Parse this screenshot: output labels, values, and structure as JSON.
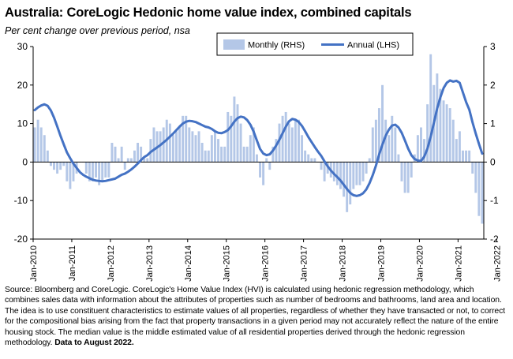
{
  "title": "Australia: CoreLogic Hedonic home value index, combined capitals",
  "subtitle": "Per cent change over previous period, nsa",
  "source_text": "Source: Bloomberg and CoreLogic. CoreLogic's Home Value Index (HVI) is calculated using hedonic regression methodology, which combines sales data with information about the attributes of properties such as number of bedrooms and bathrooms, land area and location.  The idea is to use constituent characteristics to estimate values of all properties, regardless of whether they have transacted or not, to correct for the compositional bias arising from the fact that property transactions in a given period may not accurately reflect the nature of the entire housing stock.  The median value is the middle estimated value of all residential properties derived through the hedonic regression methodology.",
  "source_bold": "Data to August 2022.",
  "chart_data": {
    "type": "bar+line",
    "x_start": "2010-01",
    "x_end": "2022-08",
    "frequency": "monthly",
    "x_ticks": [
      "Jan-2010",
      "Jan-2011",
      "Jan-2012",
      "Jan-2013",
      "Jan-2014",
      "Jan-2015",
      "Jan-2016",
      "Jan-2017",
      "Jan-2018",
      "Jan-2019",
      "Jan-2020",
      "Jan-2021",
      "Jan-2022"
    ],
    "left_axis": {
      "min": -20,
      "max": 30,
      "ticks": [
        -20,
        -10,
        0,
        10,
        20,
        30
      ]
    },
    "right_axis": {
      "min": -2,
      "max": 3,
      "ticks": [
        -2,
        -1,
        0,
        1,
        2,
        3
      ]
    },
    "legend_position": "top-right",
    "series": [
      {
        "name": "Monthly (RHS)",
        "type": "bar",
        "axis": "right",
        "color": "#b4c7e7",
        "values": [
          0.9,
          1.1,
          0.9,
          0.7,
          0.3,
          -0.1,
          -0.2,
          -0.3,
          -0.2,
          -0.1,
          -0.5,
          -0.7,
          -0.5,
          -0.3,
          0.0,
          0.0,
          -0.3,
          -0.5,
          -0.5,
          -0.4,
          -0.6,
          -0.5,
          -0.4,
          -0.4,
          0.5,
          0.4,
          0.1,
          0.4,
          -0.2,
          0.1,
          0.1,
          0.3,
          0.5,
          0.4,
          0.1,
          0.1,
          0.6,
          0.9,
          0.8,
          0.8,
          0.9,
          1.1,
          1.0,
          0.7,
          0.8,
          0.9,
          1.2,
          1.2,
          0.9,
          0.8,
          0.7,
          0.8,
          0.5,
          0.3,
          0.3,
          0.7,
          0.8,
          0.6,
          0.4,
          0.4,
          1.3,
          1.2,
          1.7,
          1.5,
          1.0,
          0.4,
          0.4,
          0.7,
          0.9,
          0.2,
          -0.4,
          -0.6,
          0.1,
          -0.2,
          0.4,
          0.6,
          1.0,
          1.2,
          1.3,
          1.0,
          0.9,
          1.1,
          1.1,
          0.7,
          0.3,
          0.2,
          0.1,
          0.1,
          0.0,
          -0.2,
          -0.5,
          -0.3,
          -0.4,
          -0.5,
          -0.6,
          -0.7,
          -0.9,
          -1.3,
          -1.1,
          -0.7,
          -0.6,
          -0.6,
          -0.5,
          -0.3,
          0.1,
          0.9,
          1.1,
          1.4,
          2.0,
          1.1,
          0.7,
          1.2,
          0.9,
          0.2,
          -0.5,
          -0.8,
          -0.8,
          -0.4,
          0.2,
          0.7,
          0.9,
          0.6,
          1.5,
          2.8,
          2.0,
          2.3,
          1.9,
          1.6,
          1.5,
          1.4,
          1.1,
          0.6,
          0.8,
          0.3,
          0.3,
          0.3,
          -0.3,
          -0.8,
          -1.4,
          -1.6
        ]
      },
      {
        "name": "Annual (LHS)",
        "type": "line",
        "axis": "left",
        "color": "#4472c4",
        "values": [
          13.5,
          14.2,
          14.7,
          15.0,
          14.6,
          13.4,
          11.5,
          9.2,
          6.8,
          4.6,
          2.5,
          1.0,
          -0.4,
          -1.5,
          -2.6,
          -3.3,
          -3.8,
          -4.2,
          -4.6,
          -4.8,
          -4.9,
          -5.0,
          -4.9,
          -4.7,
          -4.5,
          -4.3,
          -3.8,
          -3.3,
          -3.0,
          -2.5,
          -1.9,
          -1.2,
          -0.4,
          0.5,
          1.3,
          1.8,
          2.6,
          3.2,
          3.8,
          4.4,
          5.1,
          5.8,
          6.6,
          7.4,
          8.3,
          9.2,
          10.0,
          10.5,
          10.7,
          10.6,
          10.4,
          10.0,
          9.6,
          9.2,
          9.0,
          8.6,
          8.0,
          7.6,
          7.5,
          7.8,
          8.3,
          9.3,
          10.5,
          11.4,
          11.8,
          11.6,
          10.9,
          9.7,
          7.9,
          5.6,
          3.4,
          2.2,
          1.8,
          2.0,
          3.0,
          4.3,
          5.8,
          7.5,
          9.2,
          10.6,
          11.2,
          11.0,
          10.4,
          9.4,
          8.0,
          6.5,
          5.2,
          3.9,
          2.7,
          1.6,
          0.2,
          -1.1,
          -2.2,
          -3.1,
          -3.9,
          -4.8,
          -5.9,
          -7.0,
          -8.0,
          -8.6,
          -8.8,
          -8.6,
          -8.1,
          -7.1,
          -5.5,
          -3.4,
          -0.9,
          2.0,
          4.5,
          6.8,
          8.4,
          9.5,
          9.7,
          9.0,
          7.6,
          5.6,
          3.5,
          1.8,
          0.8,
          0.4,
          0.3,
          1.4,
          3.5,
          6.6,
          10.2,
          13.9,
          16.8,
          19.2,
          20.6,
          21.2,
          20.9,
          21.1,
          20.6,
          18.1,
          15.6,
          13.6,
          10.3,
          7.4,
          4.7,
          2.2
        ]
      }
    ]
  }
}
